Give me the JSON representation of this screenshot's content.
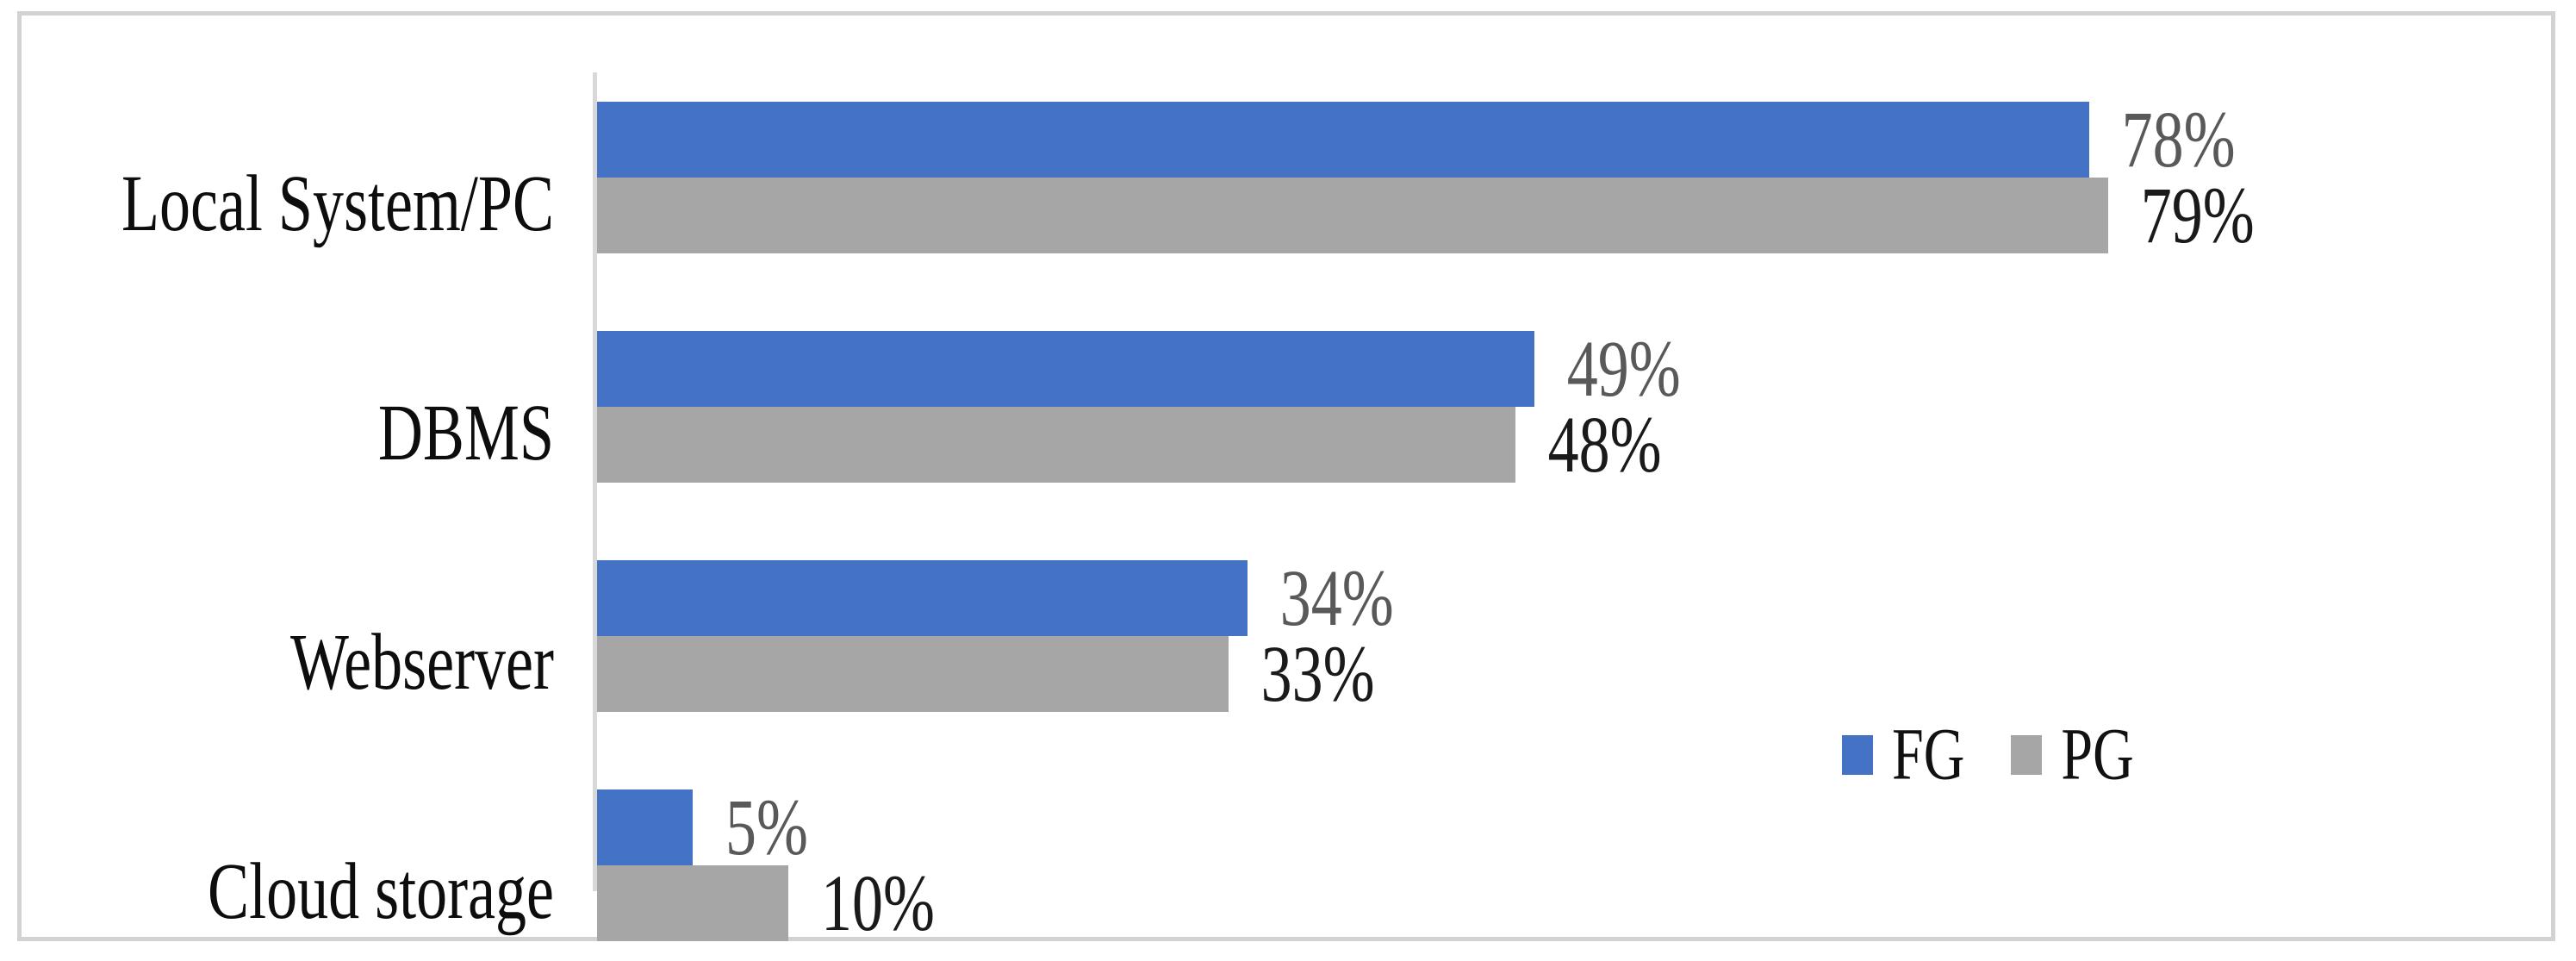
{
  "chart_data": {
    "type": "bar",
    "orientation": "horizontal",
    "title": "",
    "xlabel": "",
    "ylabel": "",
    "categories": [
      "Local System/PC",
      "DBMS",
      "Webserver",
      "Cloud storage"
    ],
    "series": [
      {
        "name": "FG",
        "color": "#4472C4",
        "values": [
          78,
          49,
          34,
          5
        ],
        "labels": [
          "78%",
          "49%",
          "34%",
          "5%"
        ]
      },
      {
        "name": "PG",
        "color": "#A6A6A6",
        "values": [
          79,
          48,
          33,
          10
        ],
        "labels": [
          "79%",
          "48%",
          "33%",
          "10%"
        ]
      }
    ],
    "xlim": [
      0,
      100
    ],
    "grid": false,
    "data_labels": "outside-end-percent",
    "legend_position": "middle-right"
  },
  "legend": {
    "items": [
      {
        "label": "FG",
        "color": "#4472C4"
      },
      {
        "label": "PG",
        "color": "#A6A6A6"
      }
    ]
  },
  "colors": {
    "fg_bar": "#4472C4",
    "pg_bar": "#A6A6A6",
    "fg_value_label": "#595959",
    "pg_value_label": "#1A1A1A",
    "axis_line": "#D8D8D8",
    "frame_border": "#D2D2D2",
    "background": "#FFFFFF"
  }
}
